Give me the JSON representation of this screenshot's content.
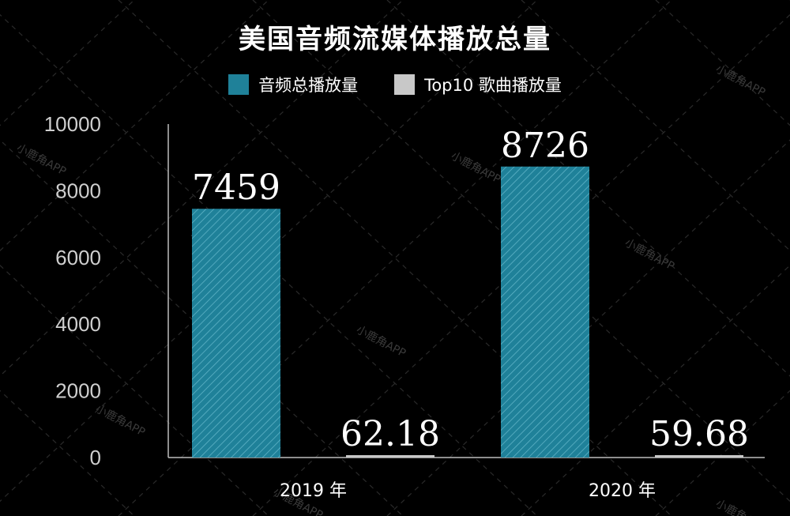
{
  "chart_data": {
    "type": "bar",
    "title": "美国音频流媒体播放总量",
    "categories": [
      "2019 年",
      "2020 年"
    ],
    "series": [
      {
        "name": "音频总播放量",
        "values": [
          7459,
          8726
        ],
        "color": "#1f8199"
      },
      {
        "name": "Top10 歌曲播放量",
        "values": [
          62.18,
          59.68
        ],
        "color": "#c8c8c8"
      }
    ],
    "data_labels": [
      [
        "7459",
        "8726"
      ],
      [
        "62.18",
        "59.68"
      ]
    ],
    "ylim": [
      0,
      10000
    ],
    "yticks": [
      "0",
      "2000",
      "4000",
      "6000",
      "8000",
      "10000"
    ],
    "legend_position": "top-center"
  },
  "watermark": "小鹿角APP"
}
